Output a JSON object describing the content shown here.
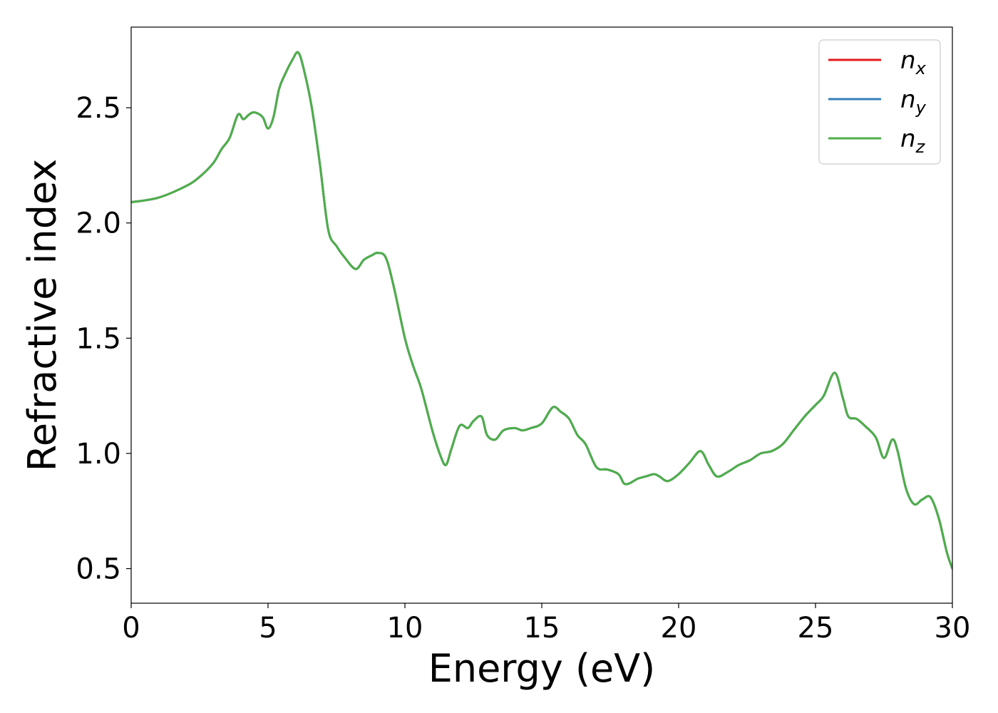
{
  "chart_data": {
    "type": "line",
    "title": "",
    "xlabel": "Energy (eV)",
    "ylabel": "Refractive index",
    "xlim": [
      0,
      30
    ],
    "ylim": [
      0.35,
      2.85
    ],
    "xticks": [
      0,
      5,
      10,
      15,
      20,
      25,
      30
    ],
    "xtick_labels": [
      "0",
      "5",
      "10",
      "15",
      "20",
      "25",
      "30"
    ],
    "yticks": [
      0.5,
      1.0,
      1.5,
      2.0,
      2.5
    ],
    "ytick_labels": [
      "0.5",
      "1.0",
      "1.5",
      "2.0",
      "2.5"
    ],
    "grid": false,
    "legend_position": "top-right",
    "series": [
      {
        "name": "n",
        "subscript": "x",
        "color": "#e41a1c",
        "x": [
          0,
          1,
          2,
          2.5,
          3,
          3.3,
          3.6,
          3.9,
          4.1,
          4.3,
          4.5,
          4.8,
          5.0,
          5.2,
          5.4,
          5.6,
          5.9,
          6.1,
          6.3,
          6.6,
          6.9,
          7.2,
          7.5,
          7.8,
          8.2,
          8.5,
          8.8,
          9.0,
          9.3,
          9.6,
          10.0,
          10.3,
          10.6,
          11.0,
          11.3,
          11.5,
          11.7,
          12.0,
          12.3,
          12.5,
          12.8,
          13.0,
          13.3,
          13.6,
          14.0,
          14.3,
          14.6,
          15.0,
          15.4,
          15.7,
          16.0,
          16.3,
          16.6,
          17.0,
          17.4,
          17.8,
          18.0,
          18.2,
          18.5,
          18.8,
          19.1,
          19.3,
          19.6,
          20.0,
          20.4,
          20.8,
          21.1,
          21.4,
          21.8,
          22.2,
          22.6,
          23.0,
          23.4,
          23.8,
          24.2,
          24.6,
          25.0,
          25.3,
          25.7,
          26.0,
          26.2,
          26.5,
          26.8,
          27.2,
          27.5,
          27.8,
          28.0,
          28.3,
          28.6,
          28.9,
          29.2,
          29.5,
          29.8,
          30.0
        ],
        "y": [
          2.09,
          2.11,
          2.16,
          2.2,
          2.26,
          2.32,
          2.37,
          2.47,
          2.45,
          2.47,
          2.48,
          2.46,
          2.41,
          2.46,
          2.58,
          2.64,
          2.71,
          2.74,
          2.67,
          2.5,
          2.25,
          1.97,
          1.9,
          1.85,
          1.8,
          1.84,
          1.86,
          1.87,
          1.85,
          1.72,
          1.5,
          1.38,
          1.28,
          1.1,
          0.99,
          0.95,
          1.02,
          1.12,
          1.11,
          1.14,
          1.16,
          1.08,
          1.06,
          1.1,
          1.11,
          1.1,
          1.11,
          1.13,
          1.2,
          1.18,
          1.15,
          1.08,
          1.04,
          0.94,
          0.93,
          0.91,
          0.87,
          0.87,
          0.89,
          0.9,
          0.91,
          0.9,
          0.88,
          0.91,
          0.96,
          1.01,
          0.95,
          0.9,
          0.92,
          0.95,
          0.97,
          1.0,
          1.01,
          1.04,
          1.1,
          1.16,
          1.21,
          1.25,
          1.35,
          1.24,
          1.16,
          1.15,
          1.12,
          1.07,
          0.98,
          1.06,
          1.01,
          0.85,
          0.78,
          0.8,
          0.81,
          0.72,
          0.57,
          0.5
        ]
      },
      {
        "name": "n",
        "subscript": "y",
        "color": "#377eb8",
        "x": [
          0,
          1,
          2,
          2.5,
          3,
          3.3,
          3.6,
          3.9,
          4.1,
          4.3,
          4.5,
          4.8,
          5.0,
          5.2,
          5.4,
          5.6,
          5.9,
          6.1,
          6.3,
          6.6,
          6.9,
          7.2,
          7.5,
          7.8,
          8.2,
          8.5,
          8.8,
          9.0,
          9.3,
          9.6,
          10.0,
          10.3,
          10.6,
          11.0,
          11.3,
          11.5,
          11.7,
          12.0,
          12.3,
          12.5,
          12.8,
          13.0,
          13.3,
          13.6,
          14.0,
          14.3,
          14.6,
          15.0,
          15.4,
          15.7,
          16.0,
          16.3,
          16.6,
          17.0,
          17.4,
          17.8,
          18.0,
          18.2,
          18.5,
          18.8,
          19.1,
          19.3,
          19.6,
          20.0,
          20.4,
          20.8,
          21.1,
          21.4,
          21.8,
          22.2,
          22.6,
          23.0,
          23.4,
          23.8,
          24.2,
          24.6,
          25.0,
          25.3,
          25.7,
          26.0,
          26.2,
          26.5,
          26.8,
          27.2,
          27.5,
          27.8,
          28.0,
          28.3,
          28.6,
          28.9,
          29.2,
          29.5,
          29.8,
          30.0
        ],
        "y": [
          2.09,
          2.11,
          2.16,
          2.2,
          2.26,
          2.32,
          2.37,
          2.47,
          2.45,
          2.47,
          2.48,
          2.46,
          2.41,
          2.46,
          2.58,
          2.64,
          2.71,
          2.74,
          2.67,
          2.5,
          2.25,
          1.97,
          1.9,
          1.85,
          1.8,
          1.84,
          1.86,
          1.87,
          1.85,
          1.72,
          1.5,
          1.38,
          1.28,
          1.1,
          0.99,
          0.95,
          1.02,
          1.12,
          1.11,
          1.14,
          1.16,
          1.08,
          1.06,
          1.1,
          1.11,
          1.1,
          1.11,
          1.13,
          1.2,
          1.18,
          1.15,
          1.08,
          1.04,
          0.94,
          0.93,
          0.91,
          0.87,
          0.87,
          0.89,
          0.9,
          0.91,
          0.9,
          0.88,
          0.91,
          0.96,
          1.01,
          0.95,
          0.9,
          0.92,
          0.95,
          0.97,
          1.0,
          1.01,
          1.04,
          1.1,
          1.16,
          1.21,
          1.25,
          1.35,
          1.24,
          1.16,
          1.15,
          1.12,
          1.07,
          0.98,
          1.06,
          1.01,
          0.85,
          0.78,
          0.8,
          0.81,
          0.72,
          0.57,
          0.5
        ]
      },
      {
        "name": "n",
        "subscript": "z",
        "color": "#4daf4a",
        "x": [
          0,
          1,
          2,
          2.5,
          3,
          3.3,
          3.6,
          3.9,
          4.1,
          4.3,
          4.5,
          4.8,
          5.0,
          5.2,
          5.4,
          5.6,
          5.9,
          6.1,
          6.3,
          6.6,
          6.9,
          7.2,
          7.5,
          7.8,
          8.2,
          8.5,
          8.8,
          9.0,
          9.3,
          9.6,
          10.0,
          10.3,
          10.6,
          11.0,
          11.3,
          11.5,
          11.7,
          12.0,
          12.3,
          12.5,
          12.8,
          13.0,
          13.3,
          13.6,
          14.0,
          14.3,
          14.6,
          15.0,
          15.4,
          15.7,
          16.0,
          16.3,
          16.6,
          17.0,
          17.4,
          17.8,
          18.0,
          18.2,
          18.5,
          18.8,
          19.1,
          19.3,
          19.6,
          20.0,
          20.4,
          20.8,
          21.1,
          21.4,
          21.8,
          22.2,
          22.6,
          23.0,
          23.4,
          23.8,
          24.2,
          24.6,
          25.0,
          25.3,
          25.7,
          26.0,
          26.2,
          26.5,
          26.8,
          27.2,
          27.5,
          27.8,
          28.0,
          28.3,
          28.6,
          28.9,
          29.2,
          29.5,
          29.8,
          30.0
        ],
        "y": [
          2.09,
          2.11,
          2.16,
          2.2,
          2.26,
          2.32,
          2.37,
          2.47,
          2.45,
          2.47,
          2.48,
          2.46,
          2.41,
          2.46,
          2.58,
          2.64,
          2.71,
          2.74,
          2.67,
          2.5,
          2.25,
          1.97,
          1.9,
          1.85,
          1.8,
          1.84,
          1.86,
          1.87,
          1.85,
          1.72,
          1.5,
          1.38,
          1.28,
          1.1,
          0.99,
          0.95,
          1.02,
          1.12,
          1.11,
          1.14,
          1.16,
          1.08,
          1.06,
          1.1,
          1.11,
          1.1,
          1.11,
          1.13,
          1.2,
          1.18,
          1.15,
          1.08,
          1.04,
          0.94,
          0.93,
          0.91,
          0.87,
          0.87,
          0.89,
          0.9,
          0.91,
          0.9,
          0.88,
          0.91,
          0.96,
          1.01,
          0.95,
          0.9,
          0.92,
          0.95,
          0.97,
          1.0,
          1.01,
          1.04,
          1.1,
          1.16,
          1.21,
          1.25,
          1.35,
          1.24,
          1.16,
          1.15,
          1.12,
          1.07,
          0.98,
          1.06,
          1.01,
          0.85,
          0.78,
          0.8,
          0.81,
          0.72,
          0.57,
          0.5
        ]
      }
    ]
  }
}
